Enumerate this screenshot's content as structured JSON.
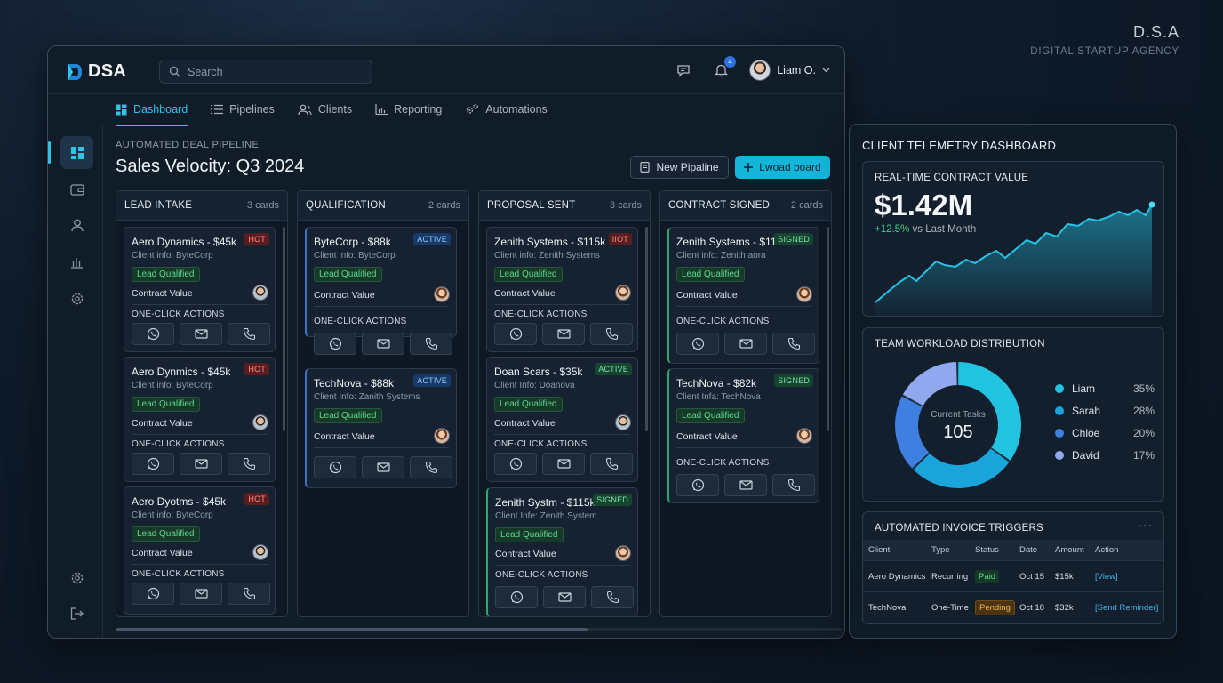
{
  "brand_corner": {
    "title": "D.S.A",
    "subtitle": "DIGITAL STARTUP AGENCY"
  },
  "app": {
    "logo_text": "DSA",
    "search_placeholder": "Search",
    "notification_count": "4",
    "user_name": "Liam O."
  },
  "nav": {
    "tabs": [
      {
        "label": "Dashboard",
        "icon": "grid-icon",
        "active": true
      },
      {
        "label": "Pipelines",
        "icon": "list-icon"
      },
      {
        "label": "Clients",
        "icon": "users-icon"
      },
      {
        "label": "Reporting",
        "icon": "bar-chart-icon"
      },
      {
        "label": "Automations",
        "icon": "gears-icon"
      }
    ],
    "sidebar": [
      "dashboard-icon",
      "wallet-icon",
      "user-icon",
      "chart-icon",
      "settings-icon",
      "settings-icon",
      "logout-icon"
    ]
  },
  "board": {
    "eyebrow": "AUTOMATED DEAL PIPELINE",
    "title": "Sales Velocity: Q3 2024",
    "new_pipeline": "New Pipaline",
    "new_board": "Lwoad board",
    "cv_label": "Contract Value",
    "actions_label": "ONE-CLICK ACTIONS",
    "columns": [
      {
        "title": "LEAD INTAKE",
        "count": "3 cards",
        "cards": [
          {
            "title": "Aero Dynamics - $45k",
            "sub": "Client info: ByteCorp",
            "badge": "HOT",
            "badge_type": "hot",
            "chip": "Lead Qualified"
          },
          {
            "title": "Aero Dynmics - $45k",
            "sub": "Client info: ByteCorp",
            "badge": "HOT",
            "badge_type": "hot",
            "chip": "Lead Qualified"
          },
          {
            "title": "Aero Dyotms - $45k",
            "sub": "Client info: ByteCorp",
            "badge": "HOT",
            "badge_type": "hot",
            "chip": "Lead Qualified"
          }
        ]
      },
      {
        "title": "QUALIFICATION",
        "count": "2 cards",
        "cards": [
          {
            "title": "ByteCorp - $88k",
            "sub": "Client info: ByteCorp",
            "badge": "ACTIVE",
            "badge_type": "active",
            "chip": "Lead Qualified"
          },
          {
            "title": "TechNova - $88k",
            "sub": "Client Info: Zanith Systems",
            "badge": "ACTIVE",
            "badge_type": "active",
            "chip": "Lead Qualified"
          }
        ]
      },
      {
        "title": "PROPOSAL SENT",
        "count": "3 cards",
        "cards": [
          {
            "title": "Zenith Systems - $115k",
            "sub": "Client info: Zenith Systems",
            "badge": "IIOT",
            "badge_type": "hot",
            "chip": "Lead Qualified"
          },
          {
            "title": "Doan Scars - $35k",
            "sub": "Client Info: Doanova",
            "badge": "ACTIVE",
            "badge_type": "signed",
            "chip": "Lead Qualified"
          },
          {
            "title": "Zenith Systm - $115k",
            "sub": "Client Infe: Zenith System",
            "badge": "SIGNED",
            "badge_type": "signed",
            "chip": "Lead Qualified"
          }
        ]
      },
      {
        "title": "CONTRACT SIGNED",
        "count": "2 cards",
        "cards": [
          {
            "title": "Zenith Systems - $115k",
            "sub": "Client info: Zenith aora",
            "badge": "SIGNED",
            "badge_type": "signed",
            "chip": "Lead Qualified"
          },
          {
            "title": "TechNova - $82k",
            "sub": "Client Infa: TechNova",
            "badge": "SIGNED",
            "badge_type": "signed",
            "chip": "Lead Qualified"
          }
        ]
      }
    ]
  },
  "telemetry": {
    "title": "CLIENT TELEMETRY DASHBOARD",
    "contract": {
      "label": "REAL-TIME CONTRACT VALUE",
      "value": "$1.42M",
      "delta": "+12.5%",
      "delta_suffix": "vs Last Month"
    },
    "workload": {
      "label": "TEAM WORKLOAD DISTRIBUTION",
      "center_label": "Current Tasks",
      "center_value": "105",
      "members": [
        {
          "name": "Liam",
          "pct": "35%",
          "value": 35,
          "color": "#22c3e0"
        },
        {
          "name": "Sarah",
          "pct": "28%",
          "value": 28,
          "color": "#1aa5da"
        },
        {
          "name": "Chloe",
          "pct": "20%",
          "value": 20,
          "color": "#3f7fe0"
        },
        {
          "name": "David",
          "pct": "17%",
          "value": 17,
          "color": "#8fa8ee"
        }
      ]
    },
    "invoices": {
      "label": "AUTOMATED INVOICE TRIGGERS",
      "more": "···",
      "headers": [
        "Client",
        "Type",
        "Status",
        "Date",
        "Amount",
        "Action"
      ],
      "rows": [
        {
          "client": "Aero Dynamics",
          "type": "Recurring",
          "status": "Paid",
          "date": "Oct 15",
          "amount": "$15k",
          "action": "[View]"
        },
        {
          "client": "TechNova",
          "type": "One-Time",
          "status": "Pending",
          "date": "Oct 18",
          "amount": "$32k",
          "action": "[Send Reminder]"
        }
      ]
    }
  }
}
